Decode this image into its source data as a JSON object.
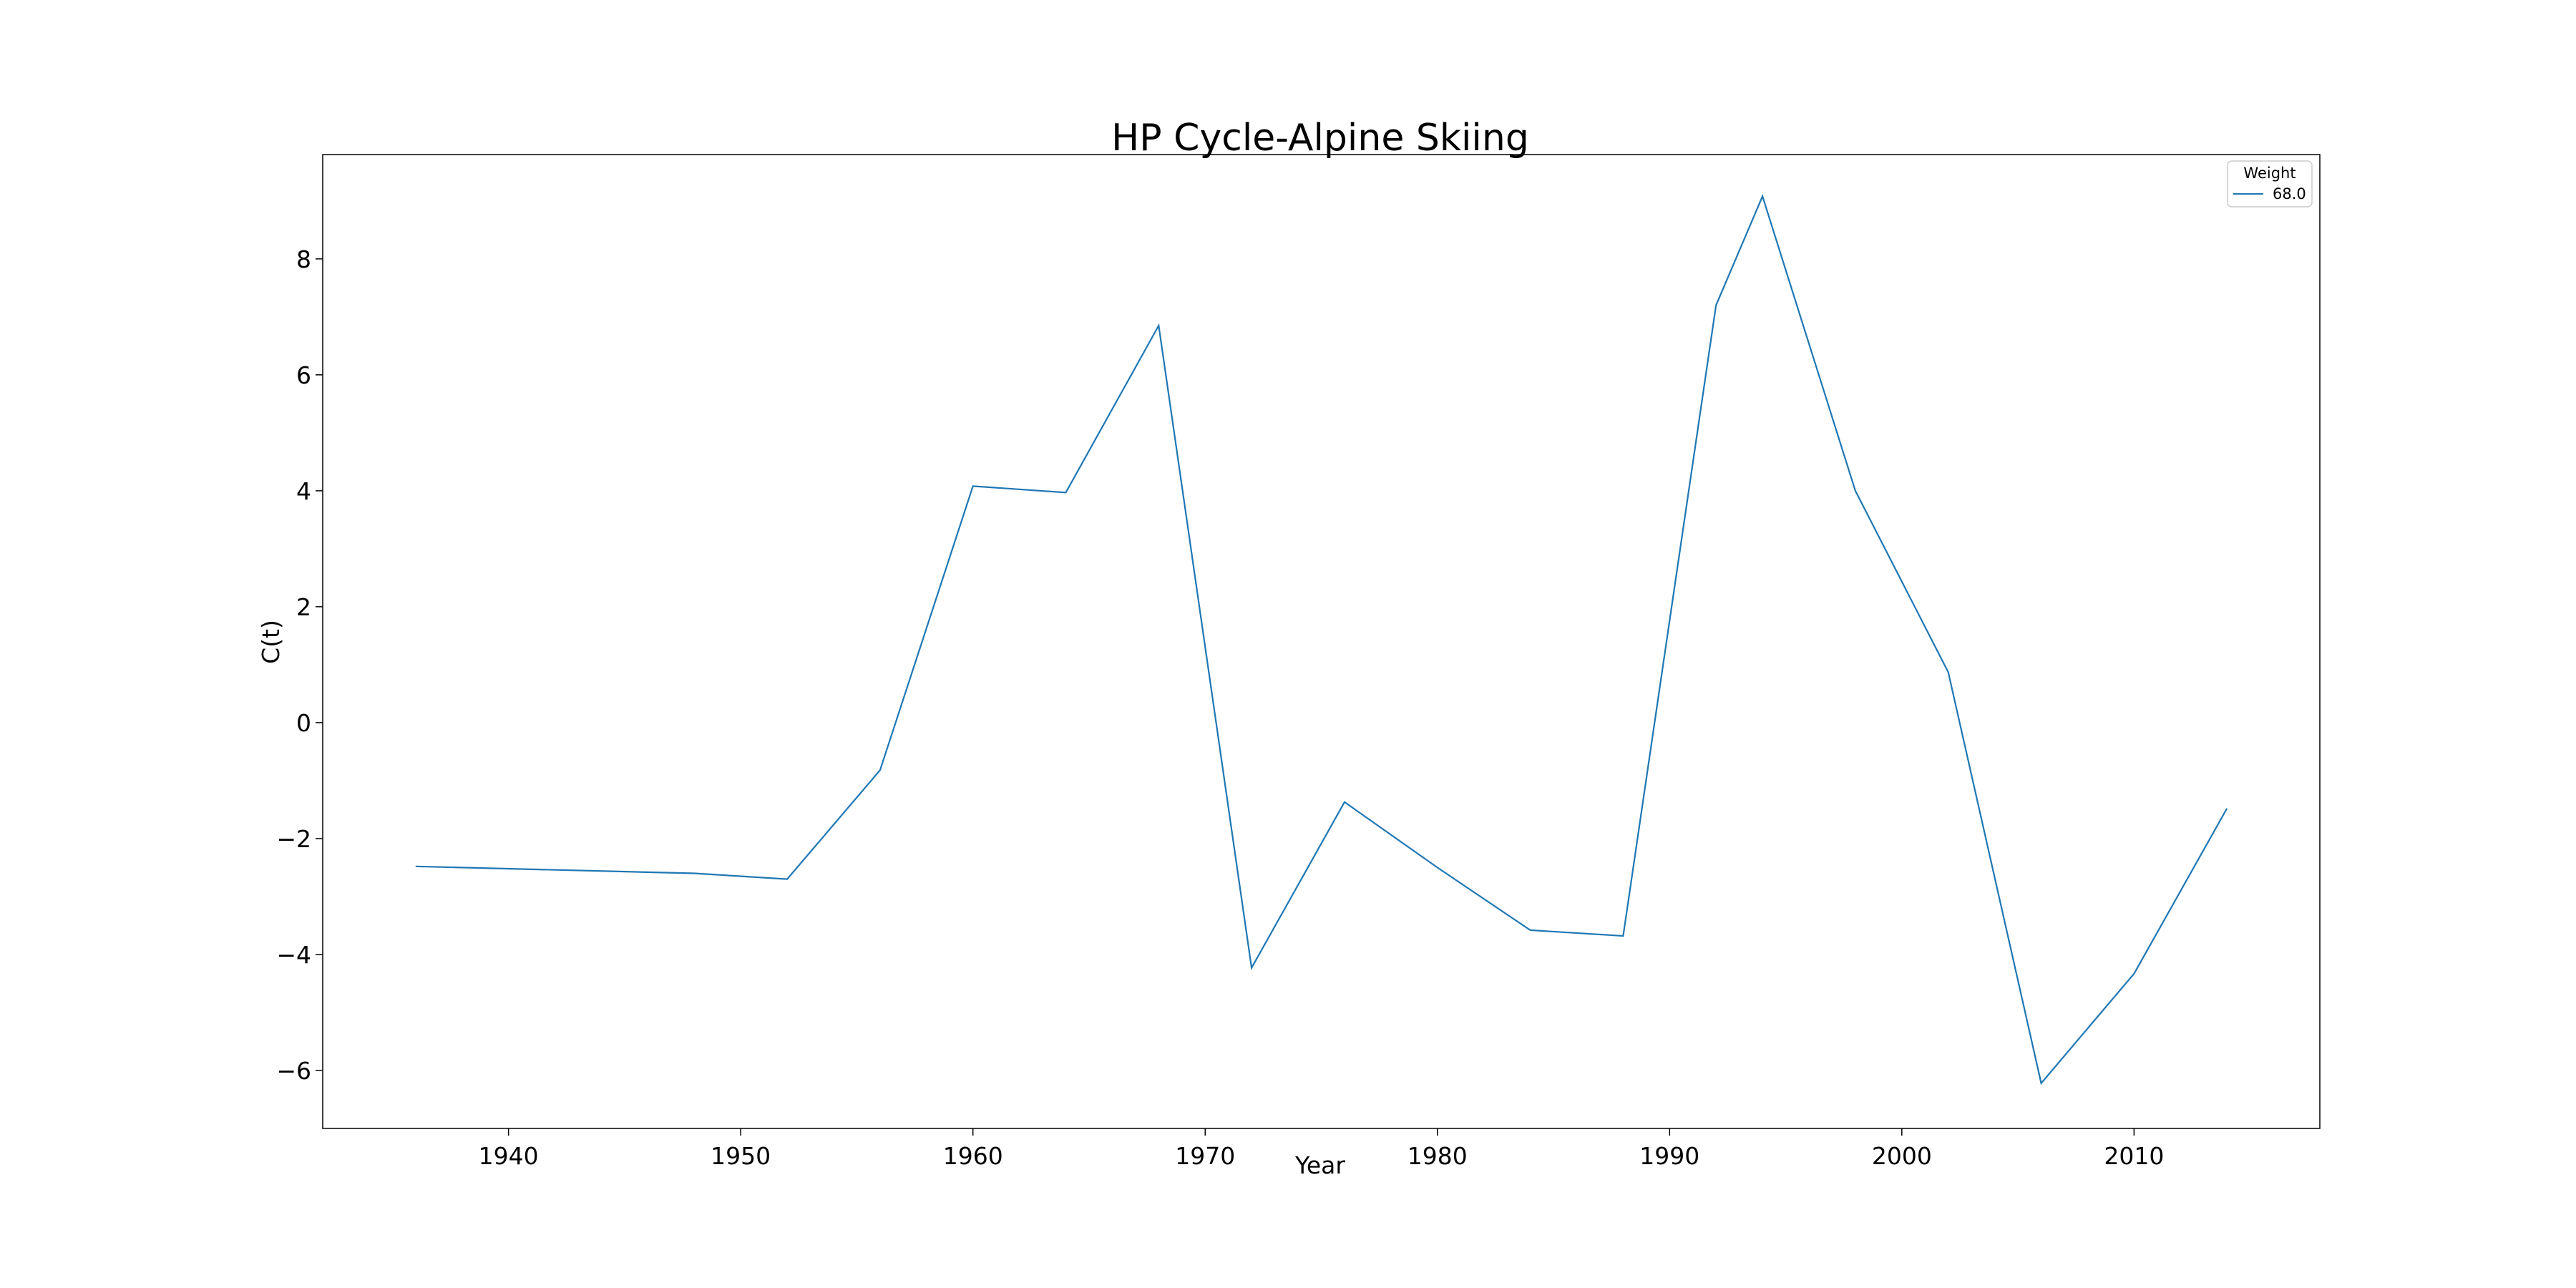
{
  "chart_data": {
    "type": "line",
    "title": "HP Cycle-Alpine Skiing",
    "xlabel": "Year",
    "ylabel": "C(t)",
    "xlim": [
      1932,
      2018
    ],
    "ylim": [
      -7,
      9.8
    ],
    "xticks": [
      1940,
      1950,
      1960,
      1970,
      1980,
      1990,
      2000,
      2010
    ],
    "yticks": [
      -6,
      -4,
      -2,
      0,
      2,
      4,
      6,
      8
    ],
    "grid": false,
    "legend": {
      "title": "Weight",
      "placement": "top-right"
    },
    "series": [
      {
        "name": "68.0",
        "color": "#1f77b4",
        "x": [
          1936,
          1948,
          1952,
          1956,
          1960,
          1964,
          1968,
          1972,
          1976,
          1980,
          1984,
          1988,
          1992,
          1994,
          1998,
          2002,
          2006,
          2010,
          2014
        ],
        "y": [
          -2.48,
          -2.6,
          -2.7,
          -0.82,
          4.08,
          3.97,
          6.85,
          -4.23,
          -1.37,
          -2.5,
          -3.58,
          -3.68,
          7.2,
          9.08,
          4.0,
          0.87,
          -6.22,
          -4.33,
          -1.48
        ]
      }
    ]
  }
}
